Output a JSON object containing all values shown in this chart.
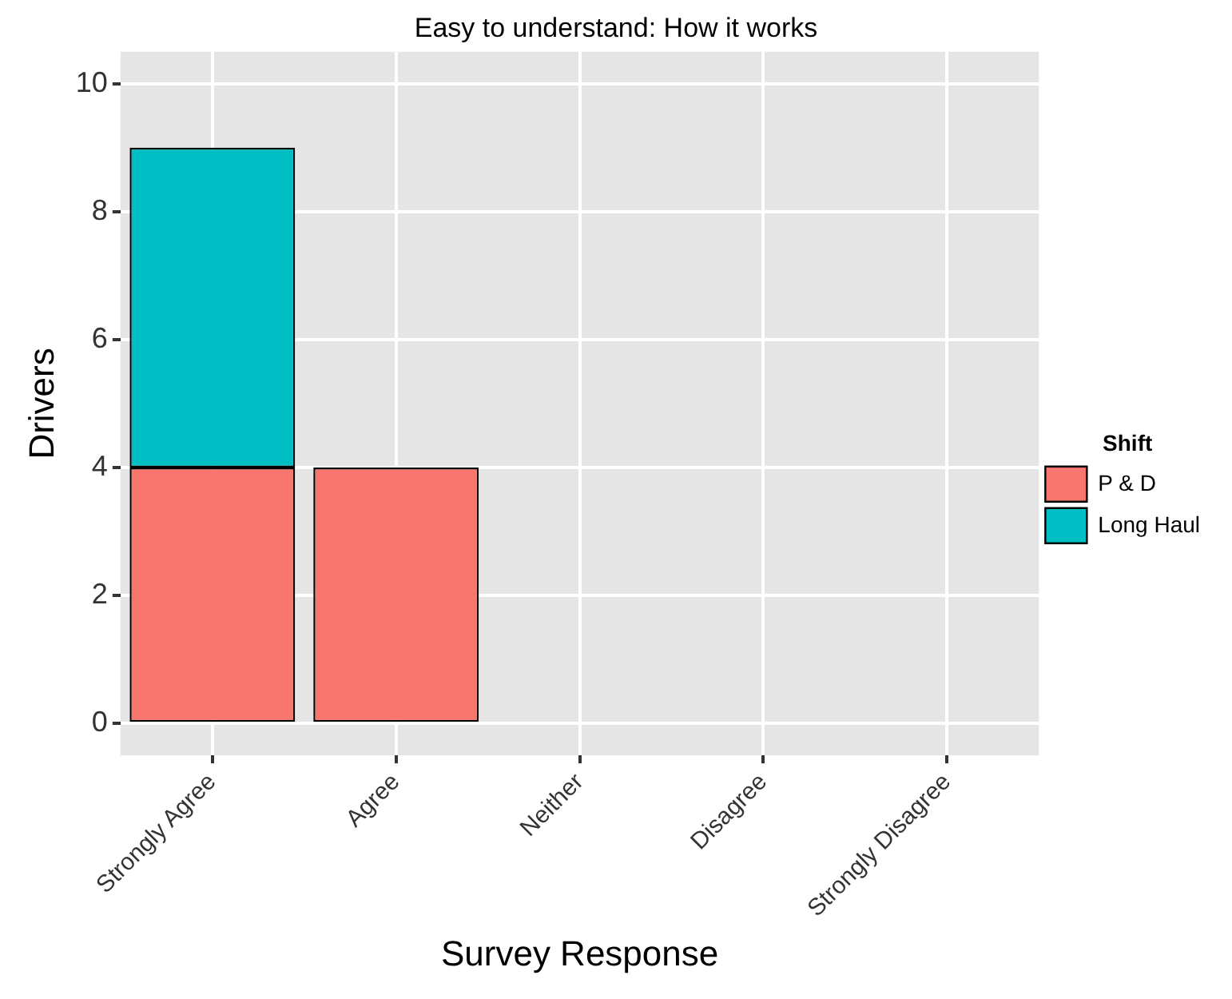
{
  "chart_data": {
    "type": "bar",
    "title": "Easy to understand: How it works",
    "xlabel": "Survey Response",
    "ylabel": "Drivers",
    "legend_title": "Shift",
    "categories": [
      "Strongly Agree",
      "Agree",
      "Neither",
      "Disagree",
      "Strongly Disagree"
    ],
    "series": [
      {
        "name": "P & D",
        "color": "#f8766d",
        "values": [
          4,
          4,
          0,
          0,
          0
        ]
      },
      {
        "name": "Long Haul",
        "color": "#00bfc4",
        "values": [
          5,
          0,
          0,
          0,
          0
        ]
      }
    ],
    "stacked": true,
    "ylim": [
      -0.5,
      10.5
    ],
    "yticks": [
      0,
      2,
      4,
      6,
      8,
      10
    ],
    "grid": true,
    "legend": "right"
  }
}
